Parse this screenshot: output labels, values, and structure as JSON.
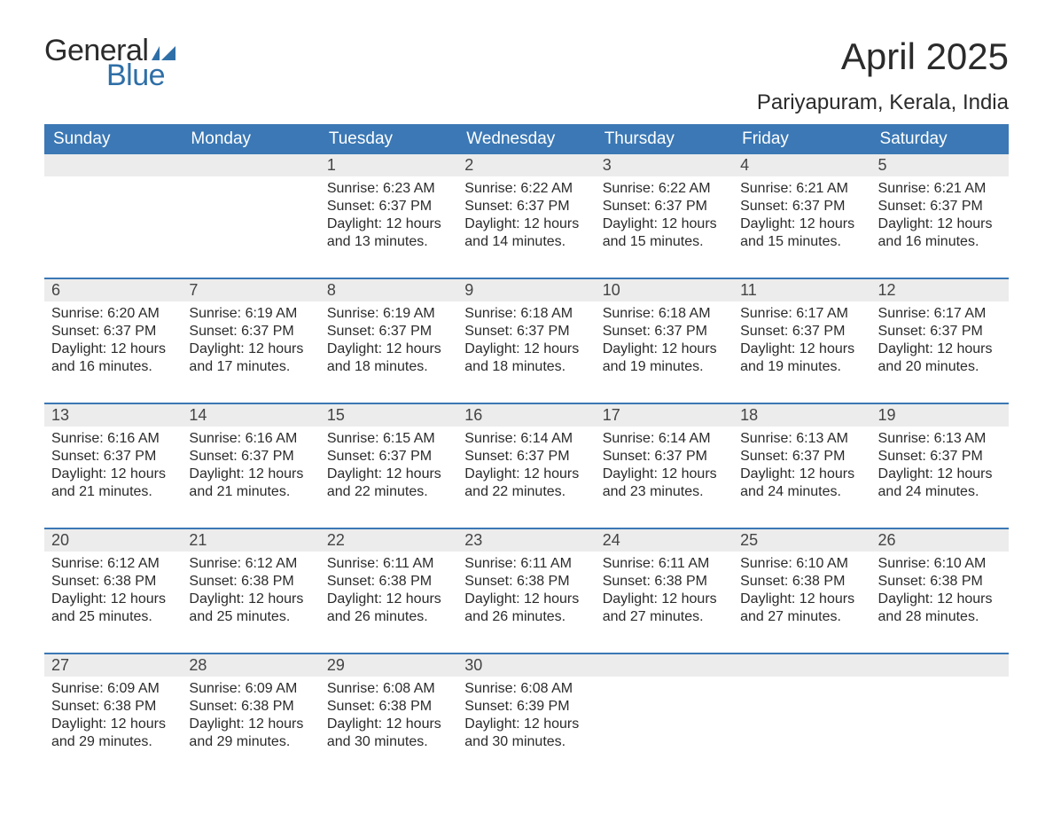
{
  "logo": {
    "line1": "General",
    "line2": "Blue"
  },
  "title": "April 2025",
  "subtitle": "Pariyapuram, Kerala, India",
  "colors": {
    "header_bg": "#3b78b5",
    "header_text": "#ffffff",
    "daynum_bg": "#ececec",
    "row_border": "#3b78b5",
    "body_text": "#2b2b2b",
    "logo_dark": "#2b2b2b",
    "logo_blue": "#2f6fa7",
    "page_bg": "#ffffff"
  },
  "typography": {
    "title_fontsize": 42,
    "subtitle_fontsize": 24,
    "dow_fontsize": 19,
    "daynum_fontsize": 18,
    "body_fontsize": 16,
    "font_family": "Arial"
  },
  "layout": {
    "columns": 7,
    "weeks": 5,
    "start_day_index": 2,
    "days_in_month": 30
  },
  "dow": [
    "Sunday",
    "Monday",
    "Tuesday",
    "Wednesday",
    "Thursday",
    "Friday",
    "Saturday"
  ],
  "weeks": [
    [
      null,
      null,
      {
        "n": "1",
        "sunrise": "Sunrise: 6:23 AM",
        "sunset": "Sunset: 6:37 PM",
        "dl1": "Daylight: 12 hours",
        "dl2": "and 13 minutes."
      },
      {
        "n": "2",
        "sunrise": "Sunrise: 6:22 AM",
        "sunset": "Sunset: 6:37 PM",
        "dl1": "Daylight: 12 hours",
        "dl2": "and 14 minutes."
      },
      {
        "n": "3",
        "sunrise": "Sunrise: 6:22 AM",
        "sunset": "Sunset: 6:37 PM",
        "dl1": "Daylight: 12 hours",
        "dl2": "and 15 minutes."
      },
      {
        "n": "4",
        "sunrise": "Sunrise: 6:21 AM",
        "sunset": "Sunset: 6:37 PM",
        "dl1": "Daylight: 12 hours",
        "dl2": "and 15 minutes."
      },
      {
        "n": "5",
        "sunrise": "Sunrise: 6:21 AM",
        "sunset": "Sunset: 6:37 PM",
        "dl1": "Daylight: 12 hours",
        "dl2": "and 16 minutes."
      }
    ],
    [
      {
        "n": "6",
        "sunrise": "Sunrise: 6:20 AM",
        "sunset": "Sunset: 6:37 PM",
        "dl1": "Daylight: 12 hours",
        "dl2": "and 16 minutes."
      },
      {
        "n": "7",
        "sunrise": "Sunrise: 6:19 AM",
        "sunset": "Sunset: 6:37 PM",
        "dl1": "Daylight: 12 hours",
        "dl2": "and 17 minutes."
      },
      {
        "n": "8",
        "sunrise": "Sunrise: 6:19 AM",
        "sunset": "Sunset: 6:37 PM",
        "dl1": "Daylight: 12 hours",
        "dl2": "and 18 minutes."
      },
      {
        "n": "9",
        "sunrise": "Sunrise: 6:18 AM",
        "sunset": "Sunset: 6:37 PM",
        "dl1": "Daylight: 12 hours",
        "dl2": "and 18 minutes."
      },
      {
        "n": "10",
        "sunrise": "Sunrise: 6:18 AM",
        "sunset": "Sunset: 6:37 PM",
        "dl1": "Daylight: 12 hours",
        "dl2": "and 19 minutes."
      },
      {
        "n": "11",
        "sunrise": "Sunrise: 6:17 AM",
        "sunset": "Sunset: 6:37 PM",
        "dl1": "Daylight: 12 hours",
        "dl2": "and 19 minutes."
      },
      {
        "n": "12",
        "sunrise": "Sunrise: 6:17 AM",
        "sunset": "Sunset: 6:37 PM",
        "dl1": "Daylight: 12 hours",
        "dl2": "and 20 minutes."
      }
    ],
    [
      {
        "n": "13",
        "sunrise": "Sunrise: 6:16 AM",
        "sunset": "Sunset: 6:37 PM",
        "dl1": "Daylight: 12 hours",
        "dl2": "and 21 minutes."
      },
      {
        "n": "14",
        "sunrise": "Sunrise: 6:16 AM",
        "sunset": "Sunset: 6:37 PM",
        "dl1": "Daylight: 12 hours",
        "dl2": "and 21 minutes."
      },
      {
        "n": "15",
        "sunrise": "Sunrise: 6:15 AM",
        "sunset": "Sunset: 6:37 PM",
        "dl1": "Daylight: 12 hours",
        "dl2": "and 22 minutes."
      },
      {
        "n": "16",
        "sunrise": "Sunrise: 6:14 AM",
        "sunset": "Sunset: 6:37 PM",
        "dl1": "Daylight: 12 hours",
        "dl2": "and 22 minutes."
      },
      {
        "n": "17",
        "sunrise": "Sunrise: 6:14 AM",
        "sunset": "Sunset: 6:37 PM",
        "dl1": "Daylight: 12 hours",
        "dl2": "and 23 minutes."
      },
      {
        "n": "18",
        "sunrise": "Sunrise: 6:13 AM",
        "sunset": "Sunset: 6:37 PM",
        "dl1": "Daylight: 12 hours",
        "dl2": "and 24 minutes."
      },
      {
        "n": "19",
        "sunrise": "Sunrise: 6:13 AM",
        "sunset": "Sunset: 6:37 PM",
        "dl1": "Daylight: 12 hours",
        "dl2": "and 24 minutes."
      }
    ],
    [
      {
        "n": "20",
        "sunrise": "Sunrise: 6:12 AM",
        "sunset": "Sunset: 6:38 PM",
        "dl1": "Daylight: 12 hours",
        "dl2": "and 25 minutes."
      },
      {
        "n": "21",
        "sunrise": "Sunrise: 6:12 AM",
        "sunset": "Sunset: 6:38 PM",
        "dl1": "Daylight: 12 hours",
        "dl2": "and 25 minutes."
      },
      {
        "n": "22",
        "sunrise": "Sunrise: 6:11 AM",
        "sunset": "Sunset: 6:38 PM",
        "dl1": "Daylight: 12 hours",
        "dl2": "and 26 minutes."
      },
      {
        "n": "23",
        "sunrise": "Sunrise: 6:11 AM",
        "sunset": "Sunset: 6:38 PM",
        "dl1": "Daylight: 12 hours",
        "dl2": "and 26 minutes."
      },
      {
        "n": "24",
        "sunrise": "Sunrise: 6:11 AM",
        "sunset": "Sunset: 6:38 PM",
        "dl1": "Daylight: 12 hours",
        "dl2": "and 27 minutes."
      },
      {
        "n": "25",
        "sunrise": "Sunrise: 6:10 AM",
        "sunset": "Sunset: 6:38 PM",
        "dl1": "Daylight: 12 hours",
        "dl2": "and 27 minutes."
      },
      {
        "n": "26",
        "sunrise": "Sunrise: 6:10 AM",
        "sunset": "Sunset: 6:38 PM",
        "dl1": "Daylight: 12 hours",
        "dl2": "and 28 minutes."
      }
    ],
    [
      {
        "n": "27",
        "sunrise": "Sunrise: 6:09 AM",
        "sunset": "Sunset: 6:38 PM",
        "dl1": "Daylight: 12 hours",
        "dl2": "and 29 minutes."
      },
      {
        "n": "28",
        "sunrise": "Sunrise: 6:09 AM",
        "sunset": "Sunset: 6:38 PM",
        "dl1": "Daylight: 12 hours",
        "dl2": "and 29 minutes."
      },
      {
        "n": "29",
        "sunrise": "Sunrise: 6:08 AM",
        "sunset": "Sunset: 6:38 PM",
        "dl1": "Daylight: 12 hours",
        "dl2": "and 30 minutes."
      },
      {
        "n": "30",
        "sunrise": "Sunrise: 6:08 AM",
        "sunset": "Sunset: 6:39 PM",
        "dl1": "Daylight: 12 hours",
        "dl2": "and 30 minutes."
      },
      null,
      null,
      null
    ]
  ]
}
